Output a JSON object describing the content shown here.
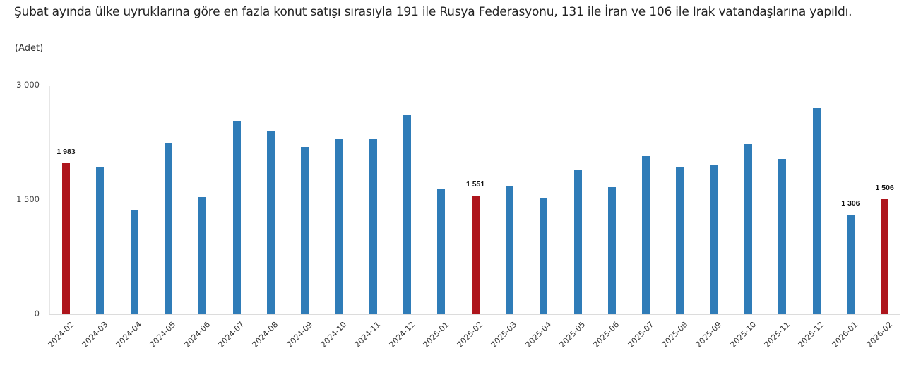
{
  "header": {
    "headline": "Şubat ayında ülke uyruklarına göre en fazla konut satışı sırasıyla 191 ile Rusya Federasyonu, 131 ile İran ve 106 ile Irak vatandaşlarına yapıldı.",
    "unit_label": "(Adet)"
  },
  "colors": {
    "normal_bar": "#2f7cb8",
    "highlight_bar": "#ae151c"
  },
  "chart_data": {
    "type": "bar",
    "title": "Şubat ayında ülke uyruklarına göre en fazla konut satışı sırasıyla 191 ile Rusya Federasyonu, 131 ile İran ve 106 ile Irak vatandaşlarına yapıldı.",
    "xlabel": "",
    "ylabel": "(Adet)",
    "ylim": [
      0,
      3000
    ],
    "yticks": [
      {
        "value": 0,
        "label": "0"
      },
      {
        "value": 1500,
        "label": "1 500"
      },
      {
        "value": 3000,
        "label": "3 000"
      }
    ],
    "grid": false,
    "legend": null,
    "categories": [
      "2024-02",
      "2024-03",
      "2024-04",
      "2024-05",
      "2024-06",
      "2024-07",
      "2024-08",
      "2024-09",
      "2024-10",
      "2024-11",
      "2024-12",
      "2025-01",
      "2025-02",
      "2025-03",
      "2025-04",
      "2025-05",
      "2025-06",
      "2025-07",
      "2025-08",
      "2025-09",
      "2025-10",
      "2025-11",
      "2025-12",
      "2026-01",
      "2026-02"
    ],
    "values": [
      1983,
      1926,
      1370,
      2250,
      1537,
      2537,
      2398,
      2194,
      2296,
      2296,
      2611,
      1648,
      1551,
      1685,
      1528,
      1889,
      1667,
      2074,
      1926,
      1963,
      2231,
      2037,
      2704,
      1306,
      1506
    ],
    "highlighted": [
      "2024-02",
      "2025-02",
      "2026-02"
    ],
    "data_labels": [
      {
        "category": "2024-02",
        "label": "1 983"
      },
      {
        "category": "2025-02",
        "label": "1 551"
      },
      {
        "category": "2026-01",
        "label": "1 306"
      },
      {
        "category": "2026-02",
        "label": "1 506"
      }
    ]
  }
}
